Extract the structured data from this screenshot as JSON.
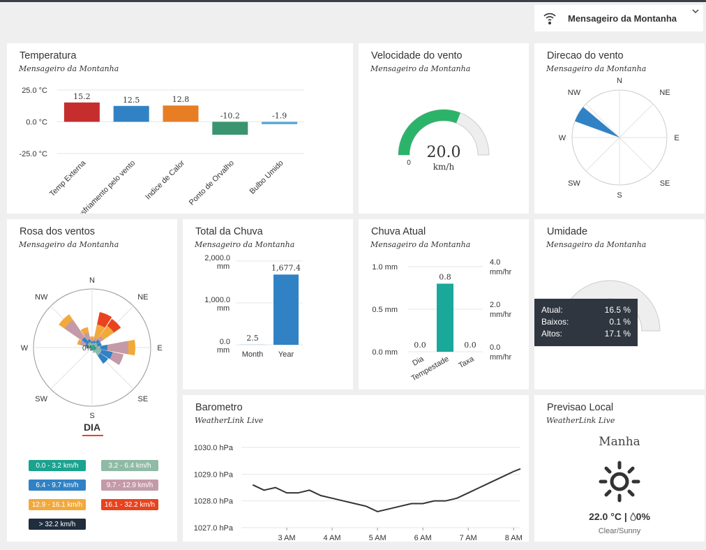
{
  "station_selector": {
    "name": "Mensageiro da Montanha",
    "icon": "wifi-location-icon",
    "chevron": "chevron-down-icon"
  },
  "temperature": {
    "title": "Temperatura",
    "subtitle": "Mensageiro da Montanha",
    "chart_data": {
      "type": "bar",
      "categories": [
        "Temp Externa",
        "Resfriamento pelo vento",
        "Indice de Calor",
        "Ponto de Orvalho",
        "Bulbo Umido"
      ],
      "values": [
        15.2,
        12.5,
        12.8,
        -10.2,
        -1.9
      ],
      "value_labels": [
        "15.2",
        "12.5",
        "12.8",
        "-10.2",
        "-1.9"
      ],
      "colors": [
        "#c62d2d",
        "#3182c4",
        "#e87e24",
        "#3b9470",
        "#5aaad1"
      ],
      "ylim": [
        -25,
        25
      ],
      "yticks": [
        "25.0 °C",
        "0.0 °C",
        "-25.0 °C"
      ],
      "xlabel": "",
      "ylabel": ""
    }
  },
  "wind_speed": {
    "title": "Velocidade do vento",
    "subtitle": "Mensageiro da Montanha",
    "value": "20.0",
    "unit": "km/h",
    "min": "0",
    "fraction": 0.62,
    "color": "#2cb36a"
  },
  "wind_direction": {
    "title": "Direcao do vento",
    "subtitle": "Mensageiro da Montanha",
    "labels": [
      "N",
      "NE",
      "E",
      "SE",
      "S",
      "SW",
      "W",
      "NW"
    ],
    "direction_deg": 300,
    "color": "#3182c4"
  },
  "wind_rose": {
    "title": "Rosa dos ventos",
    "subtitle": "Mensageiro da Montanha",
    "labels": [
      "N",
      "NE",
      "E",
      "SE",
      "S",
      "SW",
      "W",
      "NW"
    ],
    "center_label": "0%",
    "period": "DIA",
    "legend": [
      {
        "label": "0.0 - 3.2 km/h",
        "color": "#1aa38f"
      },
      {
        "label": "3.2 - 6.4 km/h",
        "color": "#8fbaa6"
      },
      {
        "label": "6.4 - 9.7 km/h",
        "color": "#3182c4"
      },
      {
        "label": "9.7 - 12.9 km/h",
        "color": "#c49aa8"
      },
      {
        "label": "12.9 - 16.1 km/h",
        "color": "#f2a93b"
      },
      {
        "label": "16.1 - 32.2 km/h",
        "color": "#e8431e"
      },
      {
        "label": "> 32.2 km/h",
        "color": "#1f2d3d"
      }
    ]
  },
  "rain_total": {
    "title": "Total da Chuva",
    "subtitle": "Mensageiro da Montanha",
    "chart_data": {
      "type": "bar",
      "categories": [
        "Month",
        "Year"
      ],
      "values": [
        2.5,
        1677.4
      ],
      "value_labels": [
        "2.5",
        "1,677.4"
      ],
      "ylim": [
        0,
        2000
      ],
      "yticks": [
        "2,000.0",
        "1,000.0",
        "0.0"
      ],
      "yunit": "mm",
      "color": "#3182c4"
    }
  },
  "rain_current": {
    "title": "Chuva Atual",
    "subtitle": "Mensageiro da Montanha",
    "chart_data": {
      "type": "bar",
      "categories": [
        "Dia",
        "Tempestade",
        "Taxa"
      ],
      "values": [
        0.0,
        0.8,
        0.0
      ],
      "value_labels": [
        "0.0",
        "0.8",
        "0.0"
      ],
      "ylim": [
        0,
        1
      ],
      "yticks_left": [
        "1.0 mm",
        "0.5 mm",
        "0.0 mm"
      ],
      "yticks_right": [
        "4.0",
        "2.0",
        "0.0"
      ],
      "yunit_right": "mm/hr",
      "color": "#1aa89a"
    }
  },
  "humidity": {
    "title": "Umidade",
    "subtitle": "Mensageiro da Montanha",
    "tooltip": [
      {
        "label": "Atual:",
        "value": "16.5 %"
      },
      {
        "label": "Baixos:",
        "value": "0.1 %"
      },
      {
        "label": "Altos:",
        "value": "17.1 %"
      }
    ]
  },
  "barometer": {
    "title": "Barometro",
    "subtitle": "WeatherLink Live",
    "chart_data": {
      "type": "line",
      "yticks": [
        "1030.0 hPa",
        "1029.0 hPa",
        "1028.0 hPa",
        "1027.0 hPa"
      ],
      "ylim": [
        1027.0,
        1030.0
      ],
      "xticks": [
        "3 AM",
        "4 AM",
        "5 AM",
        "6 AM",
        "7 AM",
        "8 AM"
      ],
      "x": [
        2.25,
        2.5,
        2.75,
        3.0,
        3.25,
        3.5,
        3.75,
        4.0,
        4.25,
        4.5,
        4.75,
        5.0,
        5.25,
        5.5,
        5.75,
        6.0,
        6.25,
        6.5,
        6.75,
        7.0,
        7.25,
        7.5,
        7.75,
        8.0,
        8.15
      ],
      "y": [
        1028.6,
        1028.4,
        1028.5,
        1028.3,
        1028.3,
        1028.4,
        1028.2,
        1028.1,
        1028.0,
        1027.9,
        1027.8,
        1027.6,
        1027.7,
        1027.8,
        1027.9,
        1027.9,
        1028.0,
        1028.0,
        1028.1,
        1028.3,
        1028.5,
        1028.7,
        1028.9,
        1029.1,
        1029.2
      ],
      "color": "#333333"
    }
  },
  "forecast": {
    "title": "Previsao Local",
    "subtitle": "WeatherLink Live",
    "period": "Manha",
    "icon": "sun-icon",
    "temp": "22.0 °C",
    "separator": "|",
    "precip_icon": "raindrop-icon",
    "precip": "0%",
    "condition": "Clear/Sunny"
  }
}
